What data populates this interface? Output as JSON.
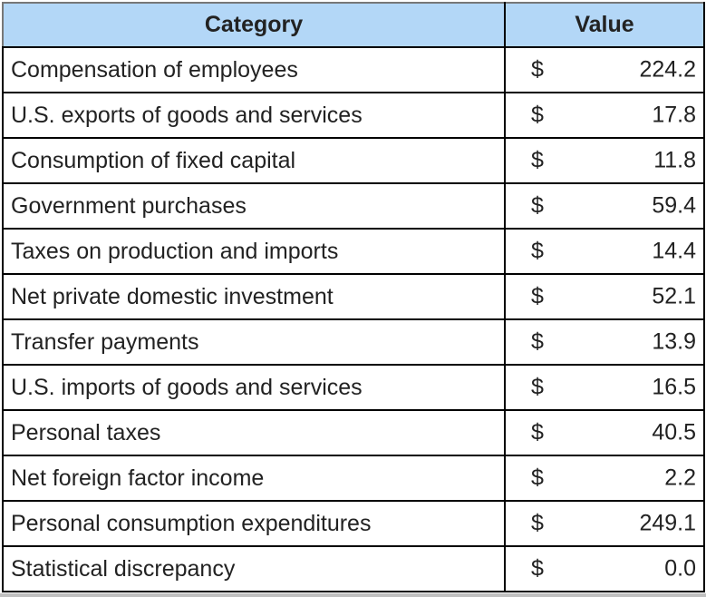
{
  "table": {
    "headers": {
      "category": "Category",
      "value": "Value"
    },
    "currency_symbol": "$",
    "rows": [
      {
        "category": "Compensation of employees",
        "value": "224.2"
      },
      {
        "category": "U.S. exports of goods and services",
        "value": "17.8"
      },
      {
        "category": "Consumption of fixed capital",
        "value": "11.8"
      },
      {
        "category": "Government purchases",
        "value": "59.4"
      },
      {
        "category": "Taxes on production and imports",
        "value": "14.4"
      },
      {
        "category": "Net private domestic investment",
        "value": "52.1"
      },
      {
        "category": "Transfer payments",
        "value": "13.9"
      },
      {
        "category": "U.S. imports of goods and services",
        "value": "16.5"
      },
      {
        "category": "Personal taxes",
        "value": "40.5"
      },
      {
        "category": "Net foreign factor income",
        "value": "2.2"
      },
      {
        "category": "Personal consumption expenditures",
        "value": "249.1"
      },
      {
        "category": "Statistical discrepancy",
        "value": "0.0"
      }
    ]
  },
  "colors": {
    "header_background": "#b3d7f7",
    "border": "#000000",
    "text": "#222222"
  }
}
